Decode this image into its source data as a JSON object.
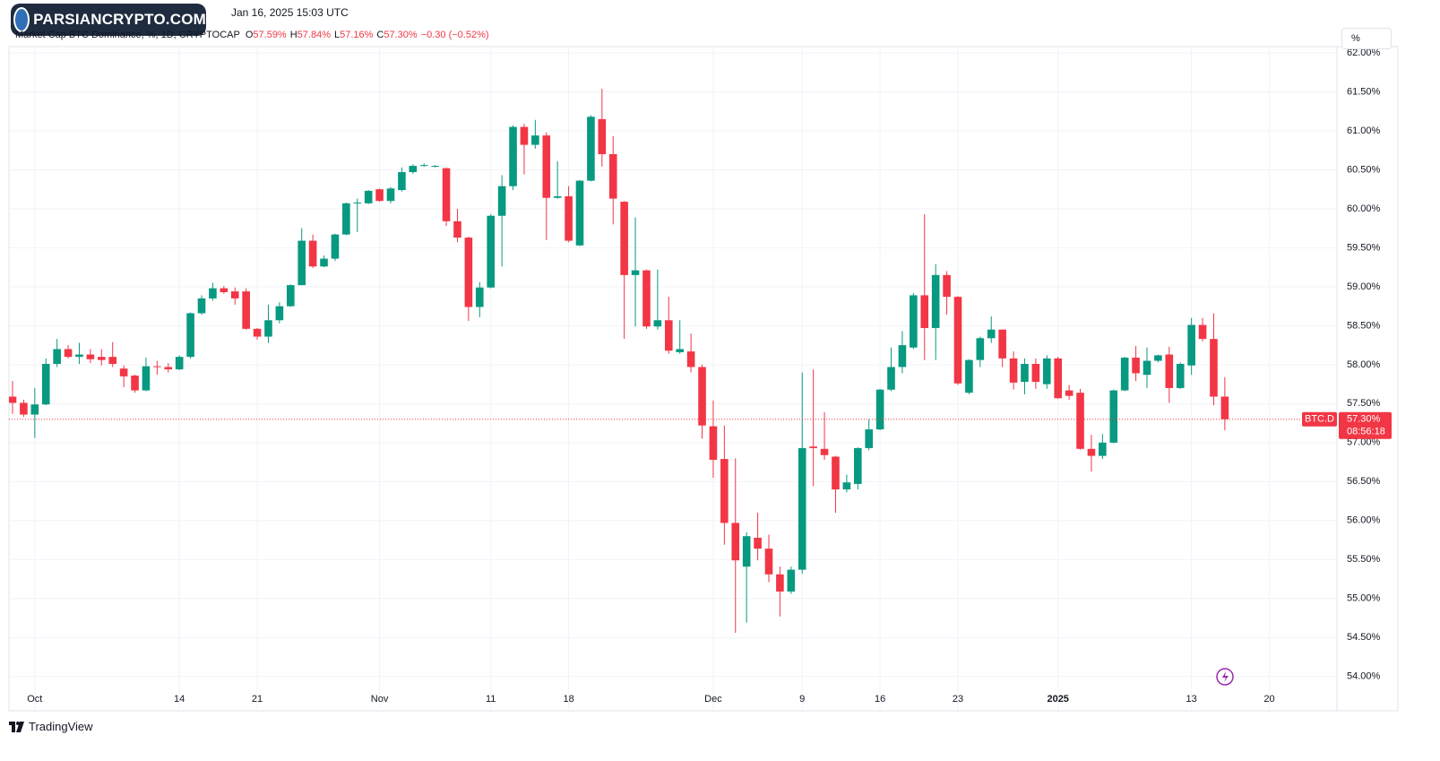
{
  "header": {
    "timestamp": "Jan 16, 2025 15:03 UTC",
    "logo": "PARSIANCRYPTO.COM"
  },
  "legend": {
    "symbol": "Market Cap BTC Dominance, %, 1D, CRYPTOCAP",
    "open_label": "O",
    "open": "57.59%",
    "high_label": "H",
    "high": "57.84%",
    "low_label": "L",
    "low": "57.16%",
    "close_label": "C",
    "close": "57.30%",
    "change": "−0.30 (−0.52%)"
  },
  "price_label": {
    "symbol": "BTC.D",
    "price": "57.30%",
    "countdown": "08:56:18"
  },
  "scale_button": "%",
  "footer": "TradingView",
  "chart_data": {
    "type": "candlestick",
    "up_color": "#089981",
    "down_color": "#f23645",
    "grid": true,
    "x": [
      "2024-09-29",
      "2024-09-30",
      "2024-10-01",
      "2024-10-02",
      "2024-10-03",
      "2024-10-04",
      "2024-10-05",
      "2024-10-06",
      "2024-10-07",
      "2024-10-08",
      "2024-10-09",
      "2024-10-10",
      "2024-10-11",
      "2024-10-12",
      "2024-10-13",
      "2024-10-14",
      "2024-10-15",
      "2024-10-16",
      "2024-10-17",
      "2024-10-18",
      "2024-10-19",
      "2024-10-20",
      "2024-10-21",
      "2024-10-22",
      "2024-10-23",
      "2024-10-24",
      "2024-10-25",
      "2024-10-26",
      "2024-10-27",
      "2024-10-28",
      "2024-10-29",
      "2024-10-30",
      "2024-10-31",
      "2024-11-01",
      "2024-11-02",
      "2024-11-03",
      "2024-11-04",
      "2024-11-05",
      "2024-11-06",
      "2024-11-07",
      "2024-11-08",
      "2024-11-09",
      "2024-11-10",
      "2024-11-11",
      "2024-11-12",
      "2024-11-13",
      "2024-11-14",
      "2024-11-15",
      "2024-11-16",
      "2024-11-17",
      "2024-11-18",
      "2024-11-19",
      "2024-11-20",
      "2024-11-21",
      "2024-11-22",
      "2024-11-23",
      "2024-11-24",
      "2024-11-25",
      "2024-11-26",
      "2024-11-27",
      "2024-11-28",
      "2024-11-29",
      "2024-11-30",
      "2024-12-01",
      "2024-12-02",
      "2024-12-03",
      "2024-12-04",
      "2024-12-05",
      "2024-12-06",
      "2024-12-07",
      "2024-12-08",
      "2024-12-09",
      "2024-12-10",
      "2024-12-11",
      "2024-12-12",
      "2024-12-13",
      "2024-12-14",
      "2024-12-15",
      "2024-12-16",
      "2024-12-17",
      "2024-12-18",
      "2024-12-19",
      "2024-12-20",
      "2024-12-21",
      "2024-12-22",
      "2024-12-23",
      "2024-12-24",
      "2024-12-25",
      "2024-12-26",
      "2024-12-27",
      "2024-12-28",
      "2024-12-29",
      "2024-12-30",
      "2024-12-31",
      "2025-01-01",
      "2025-01-02",
      "2025-01-03",
      "2025-01-04",
      "2025-01-05",
      "2025-01-06",
      "2025-01-07",
      "2025-01-08",
      "2025-01-09",
      "2025-01-10",
      "2025-01-11",
      "2025-01-12",
      "2025-01-13",
      "2025-01-14",
      "2025-01-15",
      "2025-01-16"
    ],
    "open": [
      57.59,
      57.51,
      57.36,
      57.49,
      58.01,
      58.2,
      58.1,
      58.13,
      58.1,
      58.1,
      57.95,
      57.86,
      57.67,
      57.98,
      57.97,
      57.94,
      58.1,
      58.66,
      58.85,
      58.98,
      58.94,
      58.94,
      58.46,
      58.36,
      58.57,
      58.75,
      59.02,
      59.59,
      59.26,
      59.36,
      59.67,
      60.07,
      60.07,
      60.25,
      60.1,
      60.24,
      60.47,
      60.55,
      60.54,
      60.52,
      59.84,
      59.63,
      58.74,
      58.99,
      59.91,
      60.29,
      61.05,
      60.82,
      60.94,
      60.14,
      60.16,
      59.53,
      60.36,
      61.15,
      60.7,
      60.09,
      59.15,
      59.21,
      58.49,
      58.57,
      58.16,
      58.17,
      57.97,
      57.21,
      56.79,
      55.97,
      55.41,
      55.78,
      55.64,
      55.31,
      55.09,
      55.37,
      56.95,
      56.92,
      56.82,
      56.4,
      56.47,
      56.93,
      57.17,
      57.68,
      57.97,
      58.22,
      58.89,
      58.47,
      59.15,
      58.87,
      57.64,
      58.06,
      58.34,
      58.45,
      58.08,
      57.78,
      58.01,
      57.75,
      58.08,
      57.67,
      57.64,
      56.92,
      56.83,
      57.0,
      57.67,
      58.09,
      57.87,
      58.05,
      58.13,
      57.7,
      57.99,
      58.51,
      58.33,
      57.59
    ],
    "high": [
      57.79,
      57.55,
      57.7,
      58.08,
      58.33,
      58.25,
      58.28,
      58.2,
      58.2,
      58.29,
      57.99,
      57.87,
      58.09,
      58.05,
      58.02,
      58.12,
      58.67,
      58.89,
      59.05,
      59.01,
      58.99,
      58.98,
      58.47,
      58.77,
      58.8,
      59.03,
      59.75,
      59.67,
      59.4,
      59.68,
      60.08,
      60.13,
      60.24,
      60.26,
      60.28,
      60.53,
      60.57,
      60.58,
      60.56,
      60.53,
      60.0,
      59.64,
      59.06,
      59.93,
      60.43,
      61.07,
      61.09,
      61.14,
      60.98,
      60.61,
      60.29,
      60.37,
      61.2,
      61.54,
      60.93,
      60.1,
      59.89,
      59.22,
      59.22,
      58.87,
      58.57,
      58.4,
      58.0,
      57.54,
      57.22,
      56.8,
      55.85,
      56.1,
      55.82,
      55.41,
      55.41,
      57.9,
      57.94,
      57.39,
      56.83,
      56.59,
      56.94,
      57.3,
      57.69,
      58.22,
      58.43,
      58.92,
      59.93,
      59.29,
      59.2,
      58.88,
      58.07,
      58.36,
      58.62,
      58.45,
      58.17,
      58.08,
      58.08,
      58.12,
      58.1,
      57.74,
      57.69,
      57.1,
      57.11,
      57.68,
      58.1,
      58.24,
      58.22,
      58.13,
      58.23,
      58.03,
      58.6,
      58.6,
      58.66,
      57.84
    ],
    "low": [
      57.37,
      57.33,
      57.06,
      57.48,
      57.97,
      58.08,
      58.01,
      58.02,
      57.99,
      57.97,
      57.71,
      57.64,
      57.66,
      57.87,
      57.9,
      57.93,
      58.08,
      58.64,
      58.82,
      58.91,
      58.77,
      58.45,
      58.32,
      58.28,
      58.53,
      58.74,
      59.02,
      59.24,
      59.25,
      59.33,
      59.66,
      59.7,
      60.06,
      60.09,
      60.07,
      60.22,
      60.45,
      60.54,
      60.53,
      59.78,
      59.57,
      58.56,
      58.61,
      58.98,
      59.26,
      60.24,
      60.44,
      60.77,
      59.6,
      60.13,
      59.57,
      59.52,
      60.35,
      60.54,
      59.8,
      58.33,
      58.49,
      58.46,
      58.45,
      58.14,
      58.14,
      57.9,
      57.05,
      56.55,
      55.69,
      54.56,
      54.69,
      55.49,
      55.21,
      54.77,
      55.06,
      55.32,
      56.44,
      56.78,
      56.1,
      56.36,
      56.4,
      56.9,
      57.16,
      57.66,
      57.89,
      58.2,
      58.06,
      58.06,
      58.64,
      57.74,
      57.62,
      57.97,
      58.28,
      57.97,
      57.68,
      57.62,
      57.69,
      57.69,
      57.56,
      57.55,
      56.91,
      56.63,
      56.79,
      56.99,
      57.66,
      57.79,
      57.7,
      58.03,
      57.51,
      57.69,
      57.87,
      58.3,
      57.48,
      57.16
    ],
    "close": [
      57.51,
      57.36,
      57.49,
      58.01,
      58.2,
      58.1,
      58.13,
      58.07,
      58.06,
      58.01,
      57.85,
      57.67,
      57.98,
      57.97,
      57.94,
      58.1,
      58.66,
      58.85,
      58.98,
      58.93,
      58.85,
      58.46,
      58.36,
      58.57,
      58.75,
      59.02,
      59.59,
      59.26,
      59.36,
      59.67,
      60.07,
      60.08,
      60.23,
      60.1,
      60.26,
      60.47,
      60.55,
      60.56,
      60.55,
      59.84,
      59.63,
      58.74,
      58.99,
      59.91,
      60.29,
      61.05,
      60.82,
      60.94,
      60.14,
      60.16,
      59.59,
      60.36,
      61.18,
      60.7,
      60.13,
      59.15,
      59.21,
      58.49,
      58.57,
      58.18,
      58.2,
      57.97,
      57.22,
      56.78,
      55.97,
      55.49,
      55.8,
      55.64,
      55.31,
      55.09,
      55.37,
      56.93,
      56.93,
      56.84,
      56.4,
      56.49,
      56.93,
      57.17,
      57.68,
      57.97,
      58.25,
      58.89,
      58.47,
      59.15,
      58.87,
      57.76,
      58.06,
      58.34,
      58.45,
      58.08,
      57.77,
      58.01,
      57.78,
      58.08,
      57.57,
      57.6,
      56.92,
      56.83,
      57.0,
      57.67,
      58.09,
      57.89,
      58.05,
      58.12,
      57.7,
      58.01,
      58.51,
      58.33,
      57.59,
      57.3
    ],
    "xlim": [
      "2024-09-29",
      "2025-01-26"
    ],
    "xticks": [
      {
        "value": "2024-10-01",
        "label": "Oct"
      },
      {
        "value": "2024-10-14",
        "label": "14"
      },
      {
        "value": "2024-10-21",
        "label": "21"
      },
      {
        "value": "2024-11-01",
        "label": "Nov"
      },
      {
        "value": "2024-11-11",
        "label": "11"
      },
      {
        "value": "2024-11-18",
        "label": "18"
      },
      {
        "value": "2024-12-01",
        "label": "Dec"
      },
      {
        "value": "2024-12-09",
        "label": "9"
      },
      {
        "value": "2024-12-16",
        "label": "16"
      },
      {
        "value": "2024-12-23",
        "label": "23"
      },
      {
        "value": "2025-01-01",
        "label": "2025"
      },
      {
        "value": "2025-01-13",
        "label": "13"
      },
      {
        "value": "2025-01-20",
        "label": "20"
      }
    ],
    "ylim": [
      53.56,
      62.08
    ],
    "yticks": [
      {
        "value": 54,
        "label": "54.00%"
      },
      {
        "value": 54.5,
        "label": "54.50%"
      },
      {
        "value": 55,
        "label": "55.00%"
      },
      {
        "value": 55.5,
        "label": "55.50%"
      },
      {
        "value": 56,
        "label": "56.00%"
      },
      {
        "value": 56.5,
        "label": "56.50%"
      },
      {
        "value": 57,
        "label": "57.00%"
      },
      {
        "value": 57.5,
        "label": "57.50%"
      },
      {
        "value": 58,
        "label": "58.00%"
      },
      {
        "value": 58.5,
        "label": "58.50%"
      },
      {
        "value": 59,
        "label": "59.00%"
      },
      {
        "value": 59.5,
        "label": "59.50%"
      },
      {
        "value": 60,
        "label": "60.00%"
      },
      {
        "value": 60.5,
        "label": "60.50%"
      },
      {
        "value": 61,
        "label": "61.00%"
      },
      {
        "value": 61.5,
        "label": "61.50%"
      },
      {
        "value": 62,
        "label": "62.00%"
      }
    ]
  }
}
